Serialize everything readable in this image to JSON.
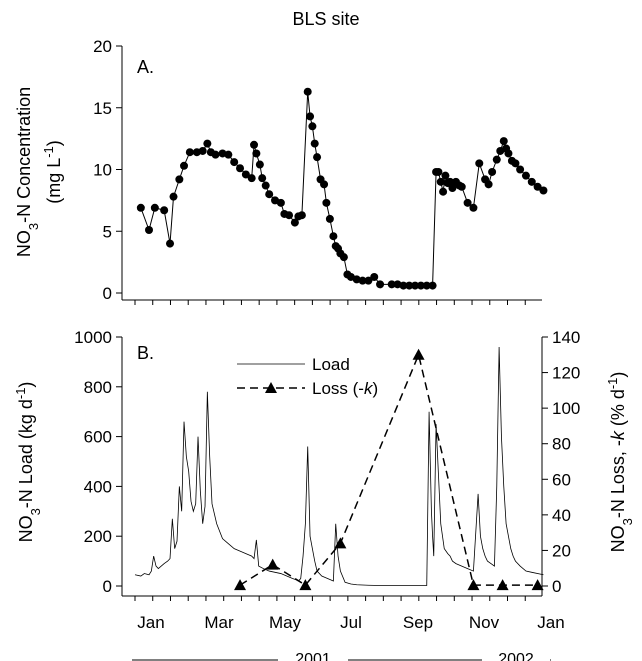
{
  "figure": {
    "title": "BLS site",
    "year_2001": "2001",
    "year_2002": "2002"
  },
  "month_labels": [
    "Jan",
    "Mar",
    "May",
    "Jul",
    "Sep",
    "Nov",
    "Jan"
  ],
  "chart_data": [
    {
      "type": "scatter",
      "panel_label": "A.",
      "ylabel_parts": [
        "NO",
        "3",
        "-N Concentration",
        "(mg L",
        "-1",
        ")"
      ],
      "ylim": [
        0,
        20
      ],
      "yticks": [
        0,
        5,
        10,
        15,
        20
      ],
      "x_unit": "day of year 2001",
      "xlim": [
        -5,
        400
      ],
      "line": true,
      "marker": "filled-circle",
      "x": [
        5,
        12,
        17,
        25,
        30,
        33,
        38,
        42,
        47,
        53,
        58,
        62,
        65,
        69,
        75,
        80,
        85,
        90,
        95,
        100,
        102,
        104,
        107,
        109,
        112,
        115,
        120,
        125,
        128,
        132,
        137,
        140,
        143,
        148,
        150,
        152,
        154,
        156,
        159,
        162,
        164,
        167,
        170,
        172,
        174,
        176,
        179,
        182,
        185,
        190,
        195,
        200,
        205,
        210,
        220,
        225,
        230,
        235,
        240,
        245,
        250,
        255,
        258,
        260,
        262,
        264,
        266,
        268,
        270,
        272,
        275,
        278,
        280,
        285,
        290,
        295,
        300,
        303,
        306,
        310,
        313,
        316,
        318,
        320,
        323,
        326,
        330,
        335,
        340,
        345,
        350
      ],
      "y": [
        6.9,
        5.1,
        6.9,
        6.7,
        4.0,
        7.8,
        9.2,
        10.3,
        11.4,
        11.4,
        11.5,
        12.1,
        11.4,
        11.2,
        11.3,
        11.2,
        10.6,
        10.1,
        9.6,
        9.3,
        12.0,
        11.3,
        10.4,
        9.3,
        8.7,
        8.0,
        7.5,
        7.3,
        6.4,
        6.3,
        5.7,
        6.2,
        6.3,
        16.3,
        14.3,
        13.5,
        12.1,
        11.0,
        9.2,
        8.8,
        7.3,
        6.0,
        4.6,
        3.8,
        3.6,
        3.2,
        2.9,
        1.5,
        1.3,
        1.1,
        1.0,
        1.0,
        1.3,
        0.7,
        0.7,
        0.7,
        0.6,
        0.6,
        0.6,
        0.6,
        0.6,
        0.6,
        9.8,
        9.8,
        9.0,
        8.2,
        9.5,
        8.9,
        9.0,
        8.5,
        9.0,
        8.7,
        8.6,
        7.3,
        6.9,
        10.5,
        9.2,
        8.8,
        9.8,
        10.8,
        11.5,
        12.3,
        11.7,
        11.3,
        10.7,
        10.5,
        10.0,
        9.5,
        9.0,
        8.6,
        8.3
      ]
    },
    {
      "type": "line",
      "panel_label": "B.",
      "ylabel_left_parts": [
        "NO",
        "3",
        "-N Load (kg d",
        "-1",
        ")"
      ],
      "ylabel_right_parts": [
        "NO",
        "3",
        "-N Loss, -",
        "k",
        " (% d",
        "-1",
        ")"
      ],
      "ylim_left": [
        0,
        1000
      ],
      "yticks_left": [
        0,
        200,
        400,
        600,
        800,
        1000
      ],
      "ylim_right": [
        0,
        140
      ],
      "yticks_right": [
        0,
        20,
        40,
        60,
        80,
        100,
        120,
        140
      ],
      "x_unit": "day of year 2001",
      "xlim": [
        -5,
        400
      ],
      "legend_position": "top-center",
      "series": [
        {
          "name": "Load",
          "legend_label": "Load",
          "axis": "left",
          "style": "solid-thin",
          "x": [
            0,
            5,
            8,
            12,
            14,
            16,
            18,
            20,
            25,
            28,
            30,
            32,
            34,
            36,
            38,
            40,
            42,
            44,
            46,
            48,
            50,
            52,
            54,
            56,
            58,
            60,
            62,
            64,
            66,
            70,
            75,
            80,
            85,
            90,
            95,
            100,
            102,
            104,
            106,
            110,
            115,
            120,
            125,
            130,
            135,
            138,
            140,
            142,
            144,
            146,
            148,
            150,
            152,
            154,
            156,
            160,
            165,
            170,
            172,
            174,
            176,
            180,
            185,
            190,
            200,
            210,
            220,
            230,
            240,
            250,
            252,
            254,
            255,
            256,
            258,
            262,
            265,
            268,
            270,
            272,
            275,
            280,
            285,
            290,
            294,
            296,
            298,
            300,
            302,
            305,
            308,
            310,
            312,
            314,
            316,
            318,
            320,
            322,
            324,
            326,
            330,
            335,
            340,
            350
          ],
          "y": [
            45,
            40,
            50,
            45,
            60,
            120,
            80,
            70,
            90,
            100,
            110,
            270,
            150,
            180,
            400,
            300,
            660,
            520,
            460,
            340,
            300,
            330,
            600,
            380,
            250,
            320,
            780,
            520,
            330,
            250,
            190,
            170,
            150,
            140,
            130,
            120,
            110,
            185,
            80,
            70,
            60,
            55,
            50,
            40,
            30,
            25,
            20,
            30,
            120,
            250,
            560,
            200,
            150,
            100,
            60,
            40,
            30,
            20,
            250,
            120,
            60,
            15,
            8,
            5,
            3,
            2,
            2,
            2,
            2,
            2,
            700,
            300,
            200,
            120,
            650,
            250,
            150,
            130,
            120,
            100,
            90,
            80,
            70,
            60,
            370,
            200,
            150,
            120,
            100,
            90,
            80,
            400,
            960,
            600,
            400,
            250,
            200,
            150,
            120,
            100,
            80,
            60,
            55,
            45
          ]
        },
        {
          "name": "Loss (-k)",
          "legend_label": "Loss (-",
          "legend_label_italic": "k",
          "legend_label_end": ")",
          "axis": "right",
          "style": "dashed",
          "marker": "filled-triangle",
          "x": [
            90,
            118,
            146,
            176,
            243,
            290,
            315,
            345
          ],
          "y": [
            0.5,
            12,
            0.5,
            24,
            130,
            0.5,
            0.5,
            0.5
          ]
        }
      ]
    }
  ]
}
